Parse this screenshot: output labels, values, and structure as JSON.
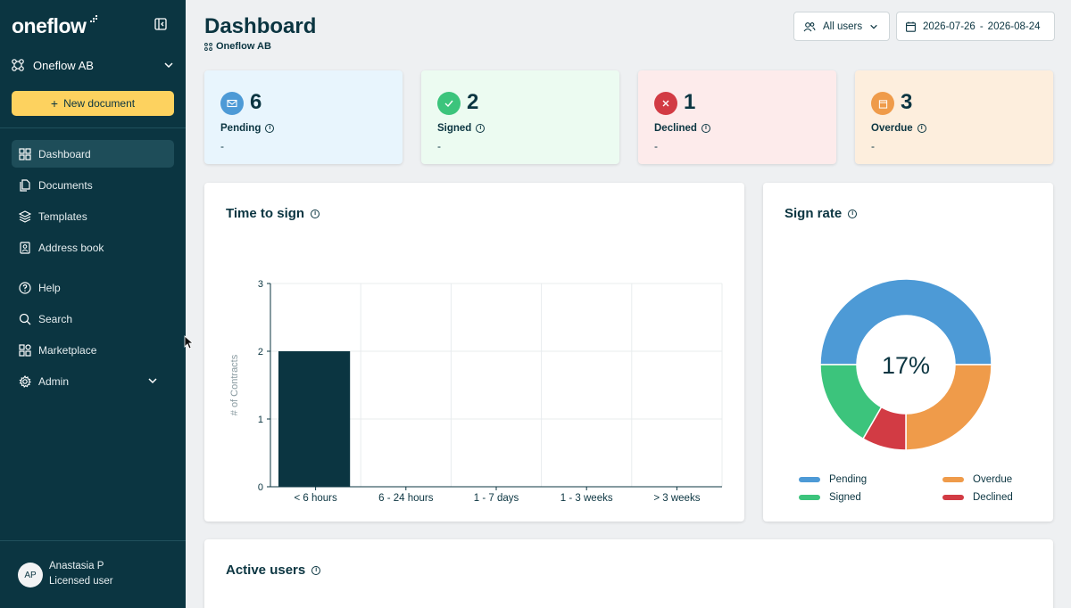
{
  "app": {
    "logo": "oneflow",
    "org": "Oneflow AB",
    "new_document": "New document"
  },
  "nav": [
    {
      "label": "Dashboard",
      "icon": "grid-icon",
      "active": true
    },
    {
      "label": "Documents",
      "icon": "documents-icon"
    },
    {
      "label": "Templates",
      "icon": "layers-icon"
    },
    {
      "label": "Address book",
      "icon": "contact-book-icon"
    },
    {
      "label": "Help",
      "icon": "help-icon"
    },
    {
      "label": "Search",
      "icon": "search-icon"
    },
    {
      "label": "Marketplace",
      "icon": "marketplace-icon"
    },
    {
      "label": "Admin",
      "icon": "gear-icon"
    }
  ],
  "user": {
    "initials": "AP",
    "name": "Anastasia P",
    "role": "Licensed user"
  },
  "header": {
    "title": "Dashboard",
    "subtitle": "Oneflow AB",
    "users_filter": "All users",
    "date_from": "2026-07-26",
    "date_to": "2026-08-24"
  },
  "kpis": [
    {
      "count": "6",
      "label": "Pending",
      "value": "-",
      "bg": "#e8f5fd",
      "accent": "#4d9ad6",
      "icon": "envelope-icon"
    },
    {
      "count": "2",
      "label": "Signed",
      "value": "-",
      "bg": "#ecfbf1",
      "accent": "#3cc47c",
      "icon": "check-icon"
    },
    {
      "count": "1",
      "label": "Declined",
      "value": "-",
      "bg": "#fdebeb",
      "accent": "#d23b44",
      "icon": "close-icon"
    },
    {
      "count": "3",
      "label": "Overdue",
      "value": "-",
      "bg": "#fdeedd",
      "accent": "#ef9b4a",
      "icon": "calendar-icon"
    }
  ],
  "panels": {
    "time_to_sign": "Time to sign",
    "sign_rate": "Sign rate",
    "active_users": "Active users"
  },
  "chart_data": [
    {
      "type": "bar",
      "title": "Time to sign",
      "ylabel": "# of Contracts",
      "xlabel": "",
      "categories": [
        "< 6 hours",
        "6 - 24 hours",
        "1 - 7 days",
        "1 - 3 weeks",
        "> 3 weeks"
      ],
      "values": [
        2,
        0,
        0,
        0,
        0
      ],
      "ylim": [
        0,
        3
      ],
      "yticks": [
        "0",
        "1",
        "2",
        "3"
      ],
      "grid": true,
      "color": "#0b3541"
    },
    {
      "type": "pie",
      "title": "Sign rate",
      "center_label": "17%",
      "slices": [
        {
          "name": "Pending",
          "value": 6,
          "color": "#4d9ad6"
        },
        {
          "name": "Overdue",
          "value": 3,
          "color": "#ef9b4a"
        },
        {
          "name": "Declined",
          "value": 1,
          "color": "#d23b44"
        },
        {
          "name": "Signed",
          "value": 2,
          "color": "#3cc47c"
        }
      ],
      "legend_order": [
        "Pending",
        "Overdue",
        "Signed",
        "Declined"
      ],
      "legend_placement": "bottom"
    }
  ]
}
